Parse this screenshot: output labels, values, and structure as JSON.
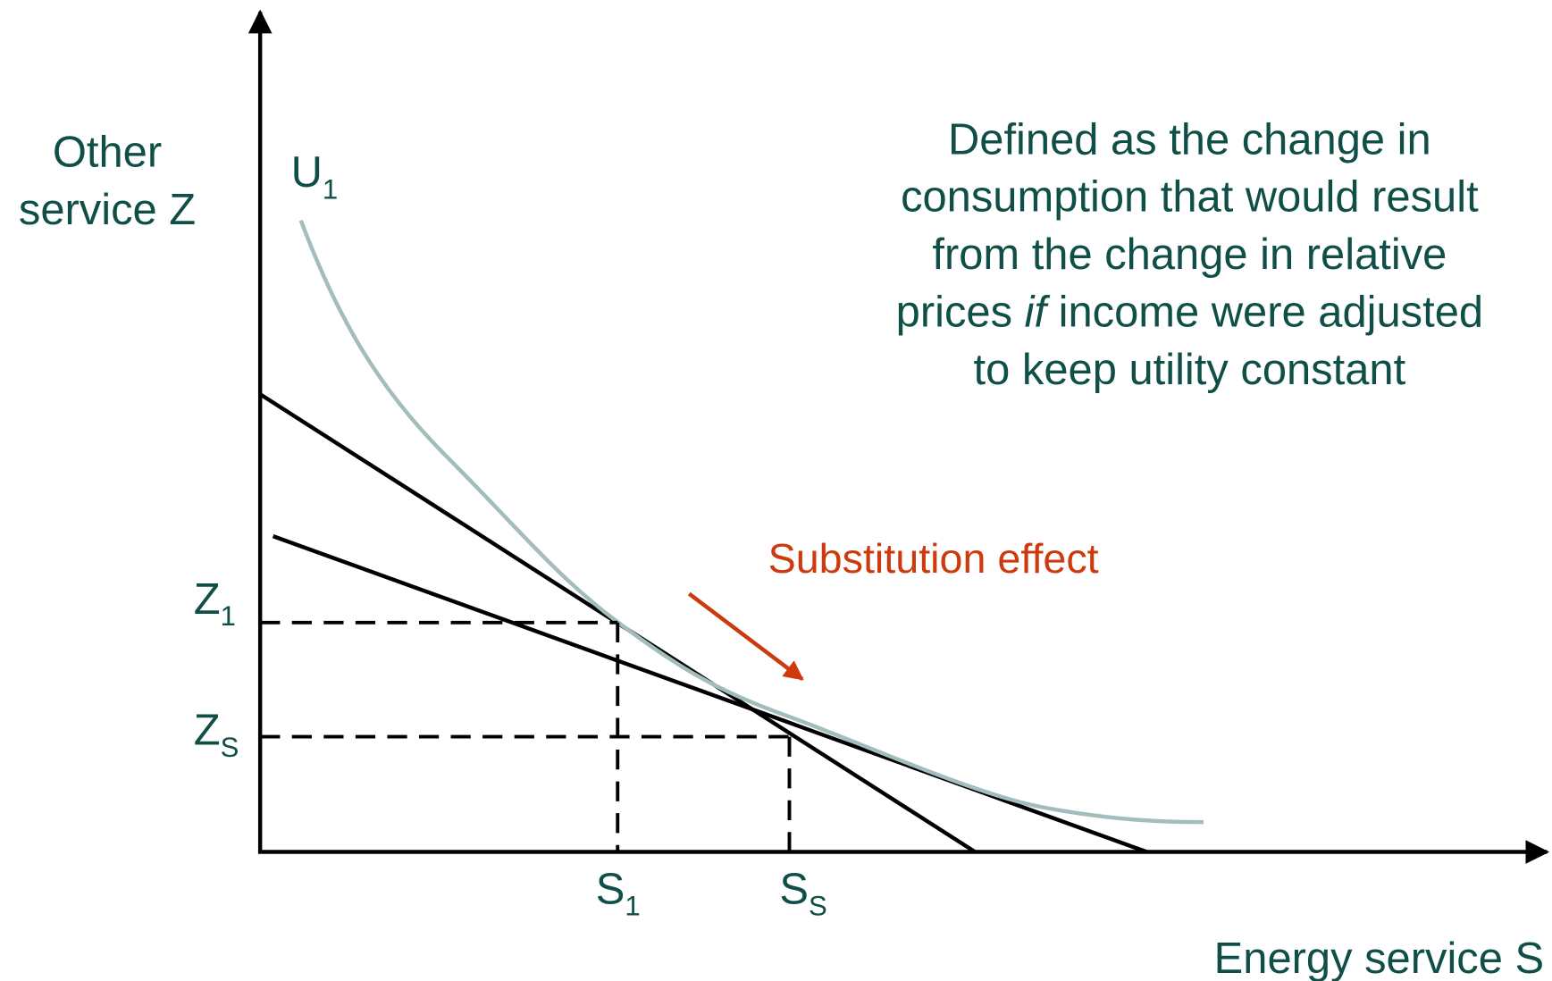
{
  "axes": {
    "y_label": [
      "Other",
      "service Z"
    ],
    "x_label": "Energy service S"
  },
  "curve_label": {
    "base": "U",
    "sub": "1"
  },
  "y_markers": [
    {
      "base": "Z",
      "sub": "1"
    },
    {
      "base": "Z",
      "sub": "S"
    }
  ],
  "x_markers": [
    {
      "base": "S",
      "sub": "1"
    },
    {
      "base": "S",
      "sub": "S"
    }
  ],
  "description": {
    "lines": [
      "Defined as the change in",
      "consumption that would result",
      "from the change in relative",
      {
        "before": "prices ",
        "italic": "if",
        "after": " income were adjusted"
      },
      "to keep utility constant"
    ]
  },
  "annotation": "Substitution effect"
}
